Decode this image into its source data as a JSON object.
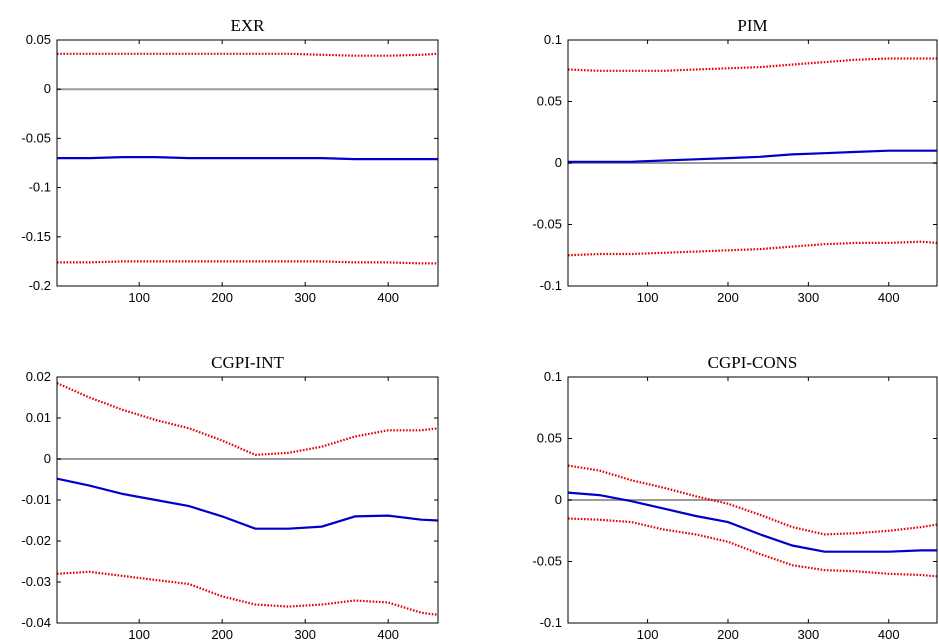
{
  "chart_data": [
    {
      "type": "line",
      "title": "EXR",
      "xlim": [
        1,
        460
      ],
      "ylim": [
        -0.2,
        0.05
      ],
      "xticks": [
        100,
        200,
        300,
        400
      ],
      "yticks": [
        -0.2,
        -0.15,
        -0.1,
        -0.05,
        0,
        0.05
      ],
      "ytick_labels": [
        "-0.2",
        "-0.15",
        "-0.1",
        "-0.05",
        "0",
        "0.05"
      ],
      "x": [
        1,
        40,
        80,
        120,
        160,
        200,
        240,
        280,
        320,
        360,
        400,
        440,
        460
      ],
      "zero_line": 0,
      "series": [
        {
          "role": "upper",
          "style": "dotted",
          "color": "#e00000",
          "values": [
            0.036,
            0.036,
            0.036,
            0.036,
            0.036,
            0.036,
            0.036,
            0.036,
            0.035,
            0.034,
            0.034,
            0.035,
            0.036
          ]
        },
        {
          "role": "estimate",
          "style": "solid",
          "color": "#0000cc",
          "values": [
            -0.07,
            -0.07,
            -0.069,
            -0.069,
            -0.07,
            -0.07,
            -0.07,
            -0.07,
            -0.07,
            -0.071,
            -0.071,
            -0.071,
            -0.071
          ]
        },
        {
          "role": "lower",
          "style": "dotted",
          "color": "#e00000",
          "values": [
            -0.176,
            -0.176,
            -0.175,
            -0.175,
            -0.175,
            -0.175,
            -0.175,
            -0.175,
            -0.175,
            -0.176,
            -0.176,
            -0.177,
            -0.177
          ]
        }
      ]
    },
    {
      "type": "line",
      "title": "PIM",
      "xlim": [
        1,
        460
      ],
      "ylim": [
        -0.1,
        0.1
      ],
      "xticks": [
        100,
        200,
        300,
        400
      ],
      "yticks": [
        -0.1,
        -0.05,
        0,
        0.05,
        0.1
      ],
      "ytick_labels": [
        "-0.1",
        "-0.05",
        "0",
        "0.05",
        "0.1"
      ],
      "x": [
        1,
        40,
        80,
        120,
        160,
        200,
        240,
        280,
        320,
        360,
        400,
        440,
        460
      ],
      "zero_line": 0,
      "series": [
        {
          "role": "upper",
          "style": "dotted",
          "color": "#e00000",
          "values": [
            0.076,
            0.075,
            0.075,
            0.075,
            0.076,
            0.077,
            0.078,
            0.08,
            0.082,
            0.084,
            0.085,
            0.085,
            0.085
          ]
        },
        {
          "role": "estimate",
          "style": "solid",
          "color": "#0000cc",
          "values": [
            0.001,
            0.001,
            0.001,
            0.002,
            0.003,
            0.004,
            0.005,
            0.007,
            0.008,
            0.009,
            0.01,
            0.01,
            0.01
          ]
        },
        {
          "role": "lower",
          "style": "dotted",
          "color": "#e00000",
          "values": [
            -0.075,
            -0.074,
            -0.074,
            -0.073,
            -0.072,
            -0.071,
            -0.07,
            -0.068,
            -0.066,
            -0.065,
            -0.065,
            -0.064,
            -0.065
          ]
        }
      ]
    },
    {
      "type": "line",
      "title": "CGPI-INT",
      "xlim": [
        1,
        460
      ],
      "ylim": [
        -0.04,
        0.02
      ],
      "xticks": [
        100,
        200,
        300,
        400
      ],
      "yticks": [
        -0.04,
        -0.03,
        -0.02,
        -0.01,
        0,
        0.01,
        0.02
      ],
      "ytick_labels": [
        "-0.04",
        "-0.03",
        "-0.02",
        "-0.01",
        "0",
        "0.01",
        "0.02"
      ],
      "x": [
        1,
        40,
        80,
        120,
        160,
        200,
        240,
        280,
        320,
        360,
        400,
        440,
        460
      ],
      "zero_line": 0,
      "series": [
        {
          "role": "upper",
          "style": "dotted",
          "color": "#e00000",
          "values": [
            0.0185,
            0.015,
            0.012,
            0.0095,
            0.0075,
            0.0045,
            0.001,
            0.0015,
            0.003,
            0.0055,
            0.007,
            0.007,
            0.0075
          ]
        },
        {
          "role": "estimate",
          "style": "solid",
          "color": "#0000cc",
          "values": [
            -0.0048,
            -0.0065,
            -0.0085,
            -0.01,
            -0.0115,
            -0.014,
            -0.017,
            -0.017,
            -0.0165,
            -0.014,
            -0.0138,
            -0.0148,
            -0.015
          ]
        },
        {
          "role": "lower",
          "style": "dotted",
          "color": "#e00000",
          "values": [
            -0.028,
            -0.0275,
            -0.0285,
            -0.0295,
            -0.0305,
            -0.0335,
            -0.0355,
            -0.036,
            -0.0355,
            -0.0345,
            -0.035,
            -0.0375,
            -0.038
          ]
        }
      ]
    },
    {
      "type": "line",
      "title": "CGPI-CONS",
      "xlim": [
        1,
        460
      ],
      "ylim": [
        -0.1,
        0.1
      ],
      "xticks": [
        100,
        200,
        300,
        400
      ],
      "yticks": [
        -0.1,
        -0.05,
        0,
        0.05,
        0.1
      ],
      "ytick_labels": [
        "-0.1",
        "-0.05",
        "0",
        "0.05",
        "0.1"
      ],
      "x": [
        1,
        40,
        80,
        120,
        160,
        200,
        240,
        280,
        320,
        360,
        400,
        440,
        460
      ],
      "zero_line": 0,
      "series": [
        {
          "role": "upper",
          "style": "dotted",
          "color": "#e00000",
          "values": [
            0.028,
            0.024,
            0.016,
            0.01,
            0.003,
            -0.003,
            -0.012,
            -0.022,
            -0.028,
            -0.027,
            -0.025,
            -0.022,
            -0.02
          ]
        },
        {
          "role": "estimate",
          "style": "solid",
          "color": "#0000cc",
          "values": [
            0.006,
            0.004,
            -0.001,
            -0.007,
            -0.013,
            -0.018,
            -0.028,
            -0.037,
            -0.042,
            -0.042,
            -0.042,
            -0.041,
            -0.041
          ]
        },
        {
          "role": "lower",
          "style": "dotted",
          "color": "#e00000",
          "values": [
            -0.015,
            -0.016,
            -0.018,
            -0.024,
            -0.028,
            -0.034,
            -0.044,
            -0.053,
            -0.057,
            -0.058,
            -0.06,
            -0.061,
            -0.062
          ]
        }
      ]
    }
  ],
  "colors": {
    "zero_line": "#9a9a9a",
    "axes": "#000000"
  }
}
